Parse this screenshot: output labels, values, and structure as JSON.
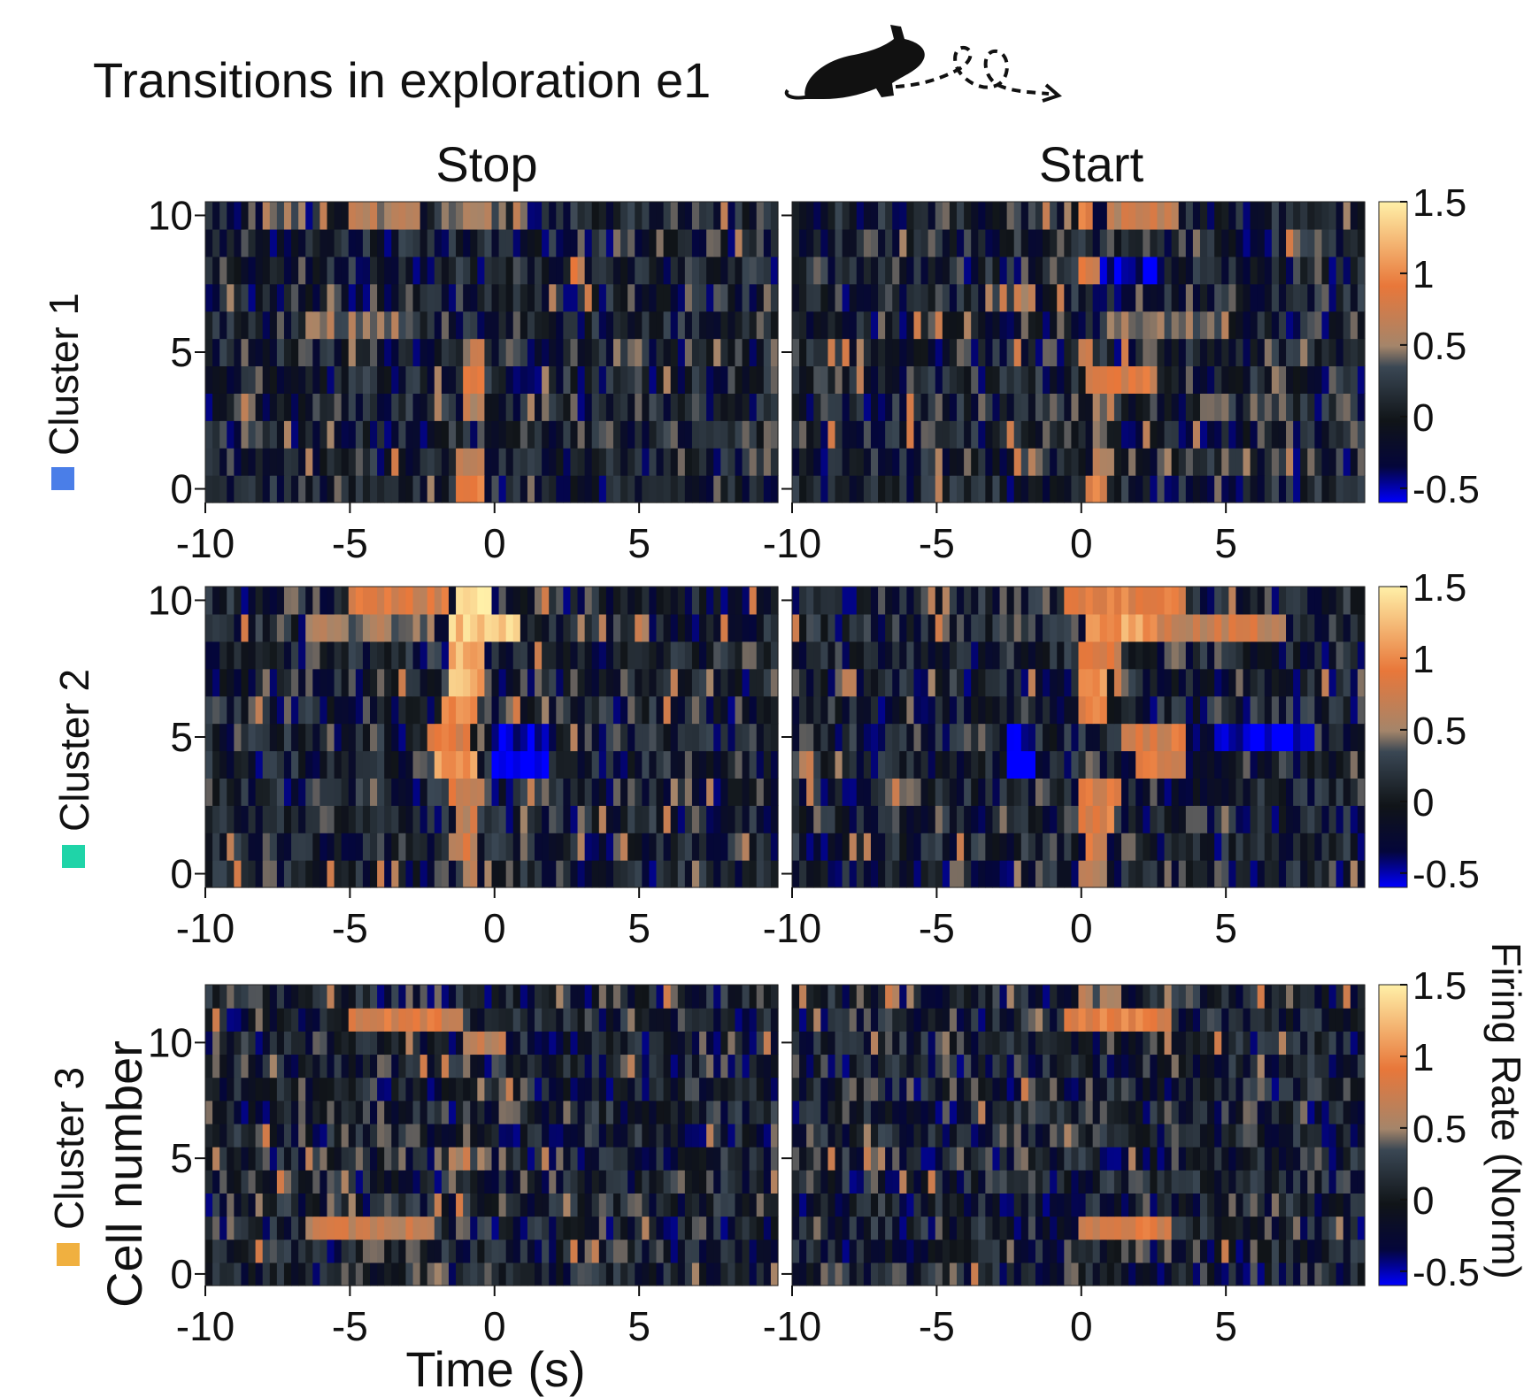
{
  "figure": {
    "title": "Transitions in exploration e1",
    "icon": "mouse-path-icon",
    "column_titles": [
      "Stop",
      "Start"
    ],
    "y_axis_label": "Cell number",
    "x_axis_label": "Time (s)",
    "colorbar_label": "Firing Rate (Norm)",
    "colorbar_ticks": [
      "1.5",
      "1",
      "0.5",
      "0",
      "-0.5"
    ],
    "colorbar_tick_values": [
      1.5,
      1.0,
      0.5,
      0.0,
      -0.5
    ],
    "colormap": [
      "#0000ff",
      "#04063a",
      "#101418",
      "#3a4754",
      "#a4856a",
      "#e8773a",
      "#fff0a8"
    ],
    "cluster_colors": {
      "cluster1": "#4a7ee8",
      "cluster2": "#1fd4a8",
      "cluster3": "#f0b040"
    }
  },
  "chart_data": [
    {
      "type": "heatmap",
      "panel": "Cluster 1 / Stop",
      "cluster": "Cluster 1",
      "column": "Stop",
      "xlabel": "",
      "ylabel": "",
      "xlim": [
        -10,
        9.8
      ],
      "ylim": [
        -0.5,
        10.5
      ],
      "vlim": [
        -0.6,
        1.5
      ],
      "x_ticks": [
        "-10",
        "-5",
        "0",
        "5"
      ],
      "x_tick_values": [
        -10,
        -5,
        0,
        5
      ],
      "y_ticks": [
        "0",
        "5",
        "10"
      ],
      "y_tick_values": [
        0,
        5,
        10
      ],
      "n_cells": 11,
      "events": [
        {
          "cell": 10,
          "t0": -8.0,
          "t1": -6.5,
          "amp": 0.5
        },
        {
          "cell": 10,
          "t0": -5.0,
          "t1": -2.5,
          "amp": 0.55
        },
        {
          "cell": 10,
          "t0": -2.0,
          "t1": 0.5,
          "amp": 0.45
        },
        {
          "cell": 8,
          "t0": 2.5,
          "t1": 3.0,
          "amp": 0.8
        },
        {
          "cell": 6,
          "t0": -6.5,
          "t1": -3.0,
          "amp": 0.5
        },
        {
          "cell": 5,
          "t0": -1.2,
          "t1": -0.4,
          "amp": 0.6
        },
        {
          "cell": 4,
          "t0": -1.2,
          "t1": -0.4,
          "amp": 0.9
        },
        {
          "cell": 3,
          "t0": -1.0,
          "t1": -0.3,
          "amp": 0.6
        },
        {
          "cell": 1,
          "t0": -1.3,
          "t1": -0.4,
          "amp": 0.55
        },
        {
          "cell": 0,
          "t0": -1.3,
          "t1": -0.3,
          "amp": 0.85
        }
      ]
    },
    {
      "type": "heatmap",
      "panel": "Cluster 1 / Start",
      "cluster": "Cluster 1",
      "column": "Start",
      "xlabel": "",
      "ylabel": "",
      "xlim": [
        -10,
        9.8
      ],
      "ylim": [
        -0.5,
        10.5
      ],
      "vlim": [
        -0.6,
        1.5
      ],
      "x_ticks": [
        "-10",
        "-5",
        "0",
        "5"
      ],
      "x_tick_values": [
        -10,
        -5,
        0,
        5
      ],
      "y_ticks": [],
      "y_tick_values": [
        0,
        5,
        10
      ],
      "n_cells": 11,
      "events": [
        {
          "cell": 10,
          "t0": 0.0,
          "t1": 0.4,
          "amp": 0.9
        },
        {
          "cell": 10,
          "t0": 1.0,
          "t1": 3.0,
          "amp": 0.7
        },
        {
          "cell": 8,
          "t0": -0.1,
          "t1": 0.6,
          "amp": 0.8
        },
        {
          "cell": 8,
          "t0": 0.7,
          "t1": 2.5,
          "amp": -0.5
        },
        {
          "cell": 6,
          "t0": 0.8,
          "t1": 5.0,
          "amp": 0.45
        },
        {
          "cell": 5,
          "t0": 0.0,
          "t1": 0.3,
          "amp": 0.6
        },
        {
          "cell": 4,
          "t0": 0.2,
          "t1": 2.5,
          "amp": 0.8
        },
        {
          "cell": 3,
          "t0": 0.3,
          "t1": 1.2,
          "amp": 0.55
        },
        {
          "cell": 2,
          "t0": 0.5,
          "t1": 1.0,
          "amp": 0.5
        },
        {
          "cell": 1,
          "t0": 0.3,
          "t1": 1.1,
          "amp": 0.7
        },
        {
          "cell": 0,
          "t0": 0.1,
          "t1": 1.0,
          "amp": 0.85
        }
      ]
    },
    {
      "type": "heatmap",
      "panel": "Cluster 2 / Stop",
      "cluster": "Cluster 2",
      "column": "Stop",
      "xlabel": "",
      "ylabel": "",
      "xlim": [
        -10,
        9.8
      ],
      "ylim": [
        -0.5,
        10.5
      ],
      "vlim": [
        -0.6,
        1.5
      ],
      "x_ticks": [
        "-10",
        "-5",
        "0",
        "5"
      ],
      "x_tick_values": [
        -10,
        -5,
        0,
        5
      ],
      "y_ticks": [
        "0",
        "5",
        "10"
      ],
      "y_tick_values": [
        0,
        5,
        10
      ],
      "n_cells": 11,
      "events": [
        {
          "cell": 10,
          "t0": -5.0,
          "t1": -1.5,
          "amp": 0.8
        },
        {
          "cell": 10,
          "t0": -1.3,
          "t1": -0.2,
          "amp": 1.45
        },
        {
          "cell": 9,
          "t0": -1.5,
          "t1": 1.0,
          "amp": 1.3
        },
        {
          "cell": 9,
          "t0": -6.5,
          "t1": -2.0,
          "amp": 0.5
        },
        {
          "cell": 8,
          "t0": -1.6,
          "t1": -0.3,
          "amp": 1.25
        },
        {
          "cell": 7,
          "t0": -1.5,
          "t1": -0.4,
          "amp": 1.2
        },
        {
          "cell": 6,
          "t0": -1.8,
          "t1": -0.5,
          "amp": 1.1
        },
        {
          "cell": 5,
          "t0": -2.4,
          "t1": -0.8,
          "amp": 0.85
        },
        {
          "cell": 5,
          "t0": 0.0,
          "t1": 2.0,
          "amp": -0.55
        },
        {
          "cell": 4,
          "t0": -2.0,
          "t1": -0.6,
          "amp": 1.1
        },
        {
          "cell": 4,
          "t0": 0.0,
          "t1": 2.0,
          "amp": -0.6
        },
        {
          "cell": 3,
          "t0": -1.5,
          "t1": -0.5,
          "amp": 0.8
        },
        {
          "cell": 2,
          "t0": -1.4,
          "t1": -0.5,
          "amp": 0.7
        },
        {
          "cell": 1,
          "t0": -1.6,
          "t1": -0.6,
          "amp": 0.7
        },
        {
          "cell": 0,
          "t0": -1.2,
          "t1": -0.5,
          "amp": 0.6
        }
      ]
    },
    {
      "type": "heatmap",
      "panel": "Cluster 2 / Start",
      "cluster": "Cluster 2",
      "column": "Start",
      "xlabel": "",
      "ylabel": "",
      "xlim": [
        -10,
        9.8
      ],
      "ylim": [
        -0.5,
        10.5
      ],
      "vlim": [
        -0.6,
        1.5
      ],
      "x_ticks": [
        "-10",
        "-5",
        "0",
        "5"
      ],
      "x_tick_values": [
        -10,
        -5,
        0,
        5
      ],
      "y_ticks": [],
      "y_tick_values": [
        0,
        5,
        10
      ],
      "n_cells": 11,
      "events": [
        {
          "cell": 10,
          "t0": -0.5,
          "t1": 3.5,
          "amp": 0.9
        },
        {
          "cell": 9,
          "t0": 0.2,
          "t1": 2.5,
          "amp": 1.1
        },
        {
          "cell": 9,
          "t0": 2.5,
          "t1": 7.0,
          "amp": 0.7
        },
        {
          "cell": 8,
          "t0": 0.0,
          "t1": 1.5,
          "amp": 0.8
        },
        {
          "cell": 7,
          "t0": 0.0,
          "t1": 1.0,
          "amp": 1.0
        },
        {
          "cell": 6,
          "t0": 0.0,
          "t1": 1.0,
          "amp": 0.9
        },
        {
          "cell": 5,
          "t0": -2.5,
          "t1": -1.5,
          "amp": -0.55
        },
        {
          "cell": 5,
          "t0": 1.5,
          "t1": 3.5,
          "amp": 0.8
        },
        {
          "cell": 5,
          "t0": 4.5,
          "t1": 8.0,
          "amp": -0.55
        },
        {
          "cell": 4,
          "t0": -2.5,
          "t1": -1.5,
          "amp": -0.55
        },
        {
          "cell": 4,
          "t0": 2.0,
          "t1": 3.5,
          "amp": 0.85
        },
        {
          "cell": 3,
          "t0": 0.0,
          "t1": 1.3,
          "amp": 0.8
        },
        {
          "cell": 2,
          "t0": 0.0,
          "t1": 1.2,
          "amp": 0.9
        },
        {
          "cell": 1,
          "t0": 0.2,
          "t1": 1.0,
          "amp": 0.8
        },
        {
          "cell": 0,
          "t0": 0.0,
          "t1": 1.0,
          "amp": 0.6
        }
      ]
    },
    {
      "type": "heatmap",
      "panel": "Cluster 3 / Stop",
      "cluster": "Cluster 3",
      "column": "Stop",
      "xlabel": "Time (s)",
      "ylabel": "Cell number",
      "xlim": [
        -10,
        9.8
      ],
      "ylim": [
        -0.5,
        12.5
      ],
      "vlim": [
        -0.6,
        1.5
      ],
      "x_ticks": [
        "-10",
        "-5",
        "0",
        "5"
      ],
      "x_tick_values": [
        -10,
        -5,
        0,
        5
      ],
      "y_ticks": [
        "0",
        "5",
        "10"
      ],
      "y_tick_values": [
        0,
        5,
        10
      ],
      "n_cells": 13,
      "events": [
        {
          "cell": 11,
          "t0": -5.0,
          "t1": -1.0,
          "amp": 0.8
        },
        {
          "cell": 10,
          "t0": -1.0,
          "t1": 0.5,
          "amp": 0.6
        },
        {
          "cell": 5,
          "t0": -1.5,
          "t1": -0.8,
          "amp": 0.6
        },
        {
          "cell": 2,
          "t0": -6.5,
          "t1": -2.0,
          "amp": 0.7
        }
      ]
    },
    {
      "type": "heatmap",
      "panel": "Cluster 3 / Start",
      "cluster": "Cluster 3",
      "column": "Start",
      "xlabel": "",
      "ylabel": "",
      "xlim": [
        -10,
        9.8
      ],
      "ylim": [
        -0.5,
        12.5
      ],
      "vlim": [
        -0.6,
        1.5
      ],
      "x_ticks": [
        "-10",
        "-5",
        "0",
        "5"
      ],
      "x_tick_values": [
        -10,
        -5,
        0,
        5
      ],
      "y_ticks": [],
      "y_tick_values": [
        0,
        5,
        10
      ],
      "n_cells": 13,
      "events": [
        {
          "cell": 12,
          "t0": 0.0,
          "t1": 1.5,
          "amp": 0.5
        },
        {
          "cell": 11,
          "t0": -0.5,
          "t1": 3.0,
          "amp": 0.9
        },
        {
          "cell": 2,
          "t0": 0.0,
          "t1": 3.0,
          "amp": 0.8
        }
      ]
    }
  ]
}
